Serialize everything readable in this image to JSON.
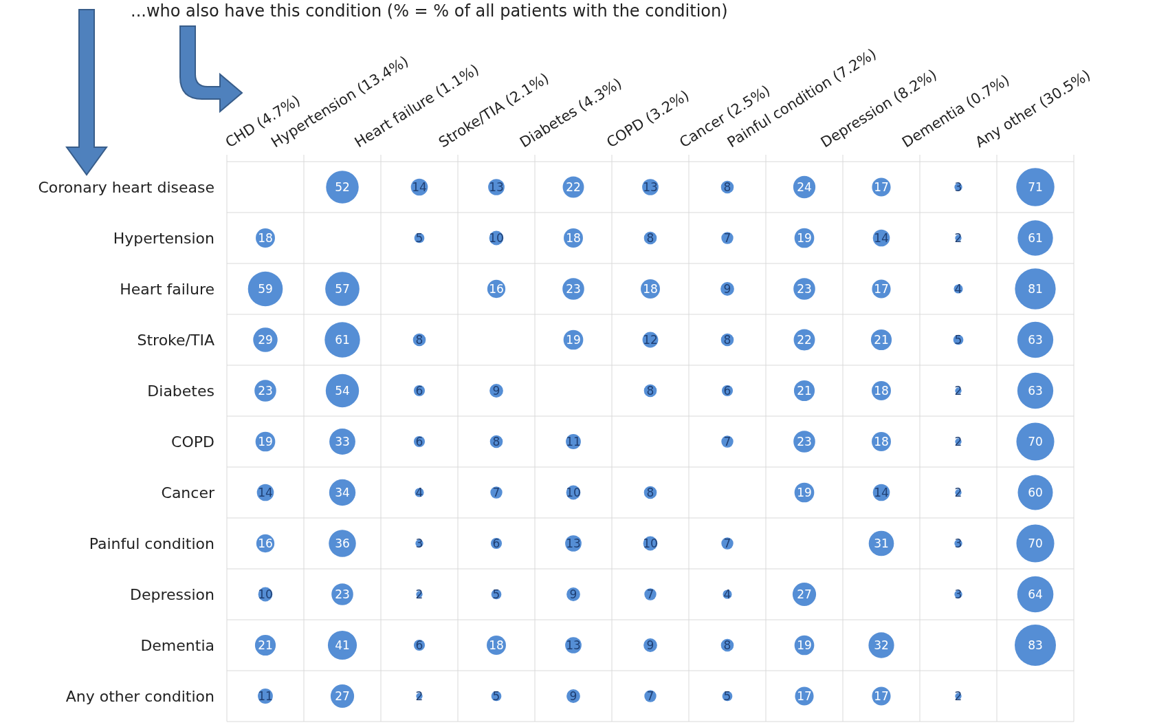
{
  "chart_data": {
    "type": "heatmap",
    "title": "...who also have this condition (% = % of all patients with the condition)",
    "categories": [
      "CHD (4.7%)",
      "Hypertension (13.4%)",
      "Heart failure (1.1%)",
      "Stroke/TIA (2.1%)",
      "Diabetes (4.3%)",
      "COPD (3.2%)",
      "Cancer (2.5%)",
      "Painful condition (7.2%)",
      "Depression (8.2%)",
      "Dementia (0.7%)",
      "Any other (30.5%)"
    ],
    "y_categories": [
      "Coronary heart disease",
      "Hypertension",
      "Heart failure",
      "Stroke/TIA",
      "Diabetes",
      "COPD",
      "Cancer",
      "Painful condition",
      "Depression",
      "Dementia",
      "Any other condition"
    ],
    "cells": [
      [
        null,
        52,
        14,
        13,
        22,
        13,
        8,
        24,
        17,
        3,
        71
      ],
      [
        18,
        null,
        5,
        10,
        18,
        8,
        7,
        19,
        14,
        2,
        61
      ],
      [
        59,
        57,
        null,
        16,
        23,
        18,
        9,
        23,
        17,
        4,
        81
      ],
      [
        29,
        61,
        8,
        null,
        19,
        12,
        8,
        22,
        21,
        5,
        63
      ],
      [
        23,
        54,
        6,
        9,
        null,
        8,
        6,
        21,
        18,
        2,
        63
      ],
      [
        19,
        33,
        6,
        8,
        11,
        null,
        7,
        23,
        18,
        2,
        70
      ],
      [
        14,
        34,
        4,
        7,
        10,
        8,
        null,
        19,
        14,
        2,
        60
      ],
      [
        16,
        36,
        3,
        6,
        13,
        10,
        7,
        null,
        31,
        3,
        70
      ],
      [
        10,
        23,
        2,
        5,
        9,
        7,
        4,
        27,
        null,
        3,
        64
      ],
      [
        21,
        41,
        6,
        18,
        13,
        9,
        8,
        19,
        32,
        null,
        83
      ],
      [
        11,
        27,
        2,
        5,
        9,
        7,
        5,
        17,
        17,
        2,
        null
      ]
    ],
    "data_labels": true,
    "grid": true
  }
}
